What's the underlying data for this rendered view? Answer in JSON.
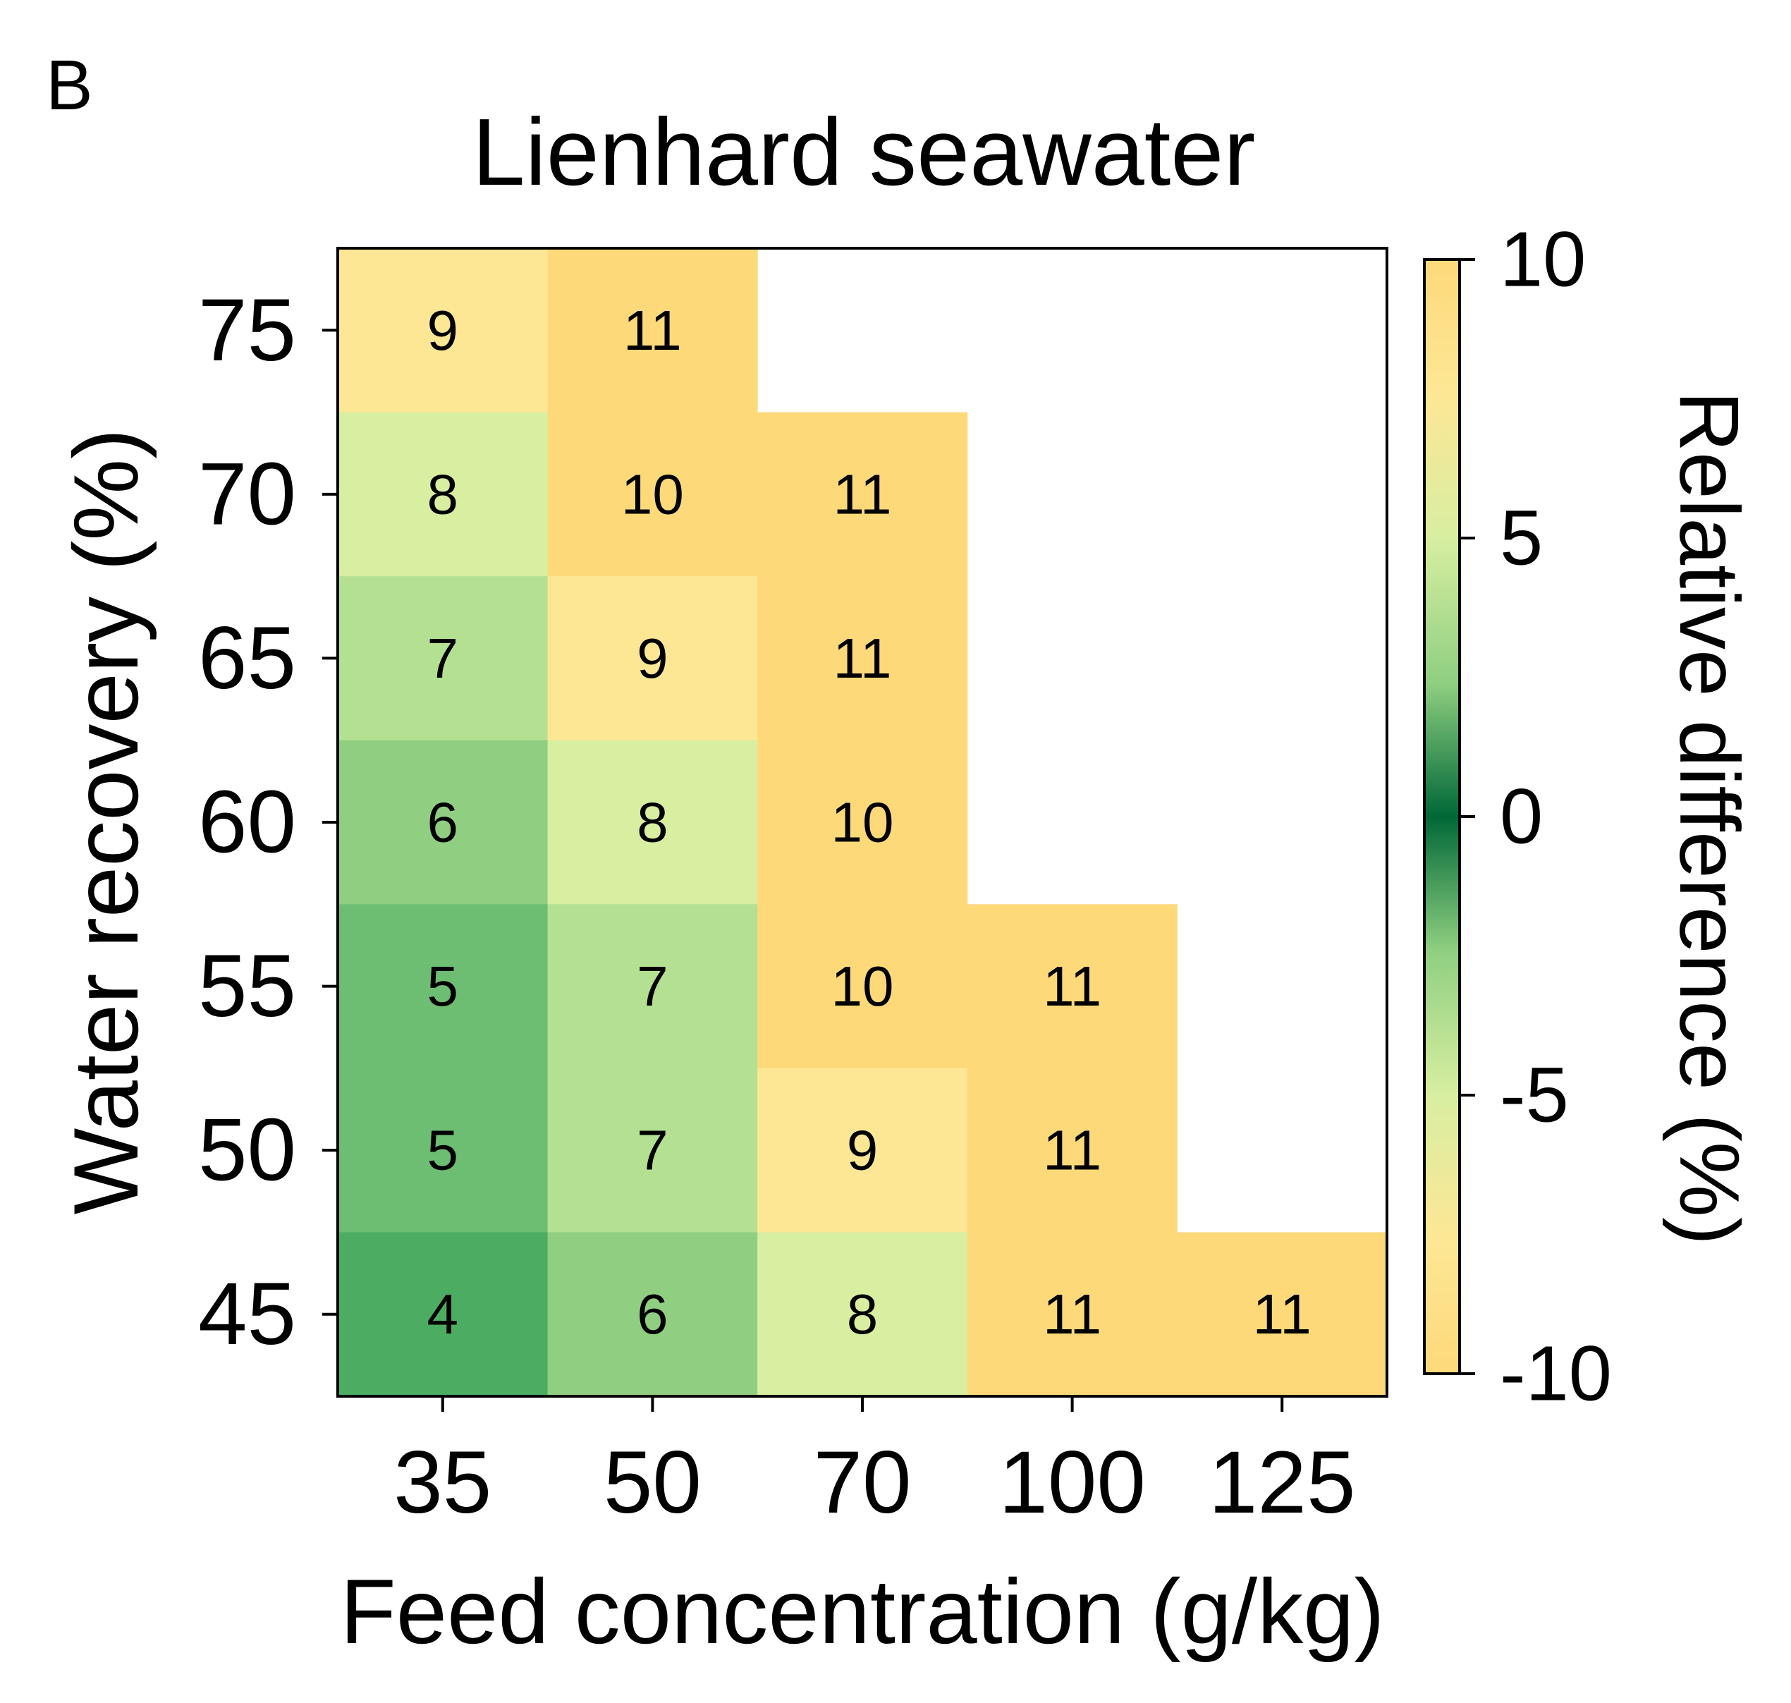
{
  "panel_label": "B",
  "chart_data": {
    "type": "heatmap",
    "title": "Lienhard seawater",
    "xlabel": "Feed concentration (g/kg)",
    "ylabel": "Water recovery (%)",
    "x_categories": [
      "35",
      "50",
      "70",
      "100",
      "125"
    ],
    "y_categories": [
      "75",
      "70",
      "65",
      "60",
      "55",
      "50",
      "45"
    ],
    "values": [
      [
        9,
        11,
        null,
        null,
        null
      ],
      [
        8,
        10,
        11,
        null,
        null
      ],
      [
        7,
        9,
        11,
        null,
        null
      ],
      [
        6,
        8,
        10,
        null,
        null
      ],
      [
        5,
        7,
        10,
        11,
        null
      ],
      [
        5,
        7,
        9,
        11,
        null
      ],
      [
        4,
        6,
        8,
        11,
        11
      ]
    ],
    "colorbar": {
      "label": "Relative difference (%)",
      "range": [
        -10,
        10
      ],
      "ticks": [
        "10",
        "5",
        "0",
        "-5",
        "-10"
      ],
      "colormap": "YlGn diverging (yellow–green–dark green–green–yellow)",
      "colors": [
        "#fdd97a",
        "#fde795",
        "#d8eea1",
        "#9bd487",
        "#4cad62",
        "#006837"
      ]
    },
    "grid": false,
    "legend": "colorbar-right"
  }
}
